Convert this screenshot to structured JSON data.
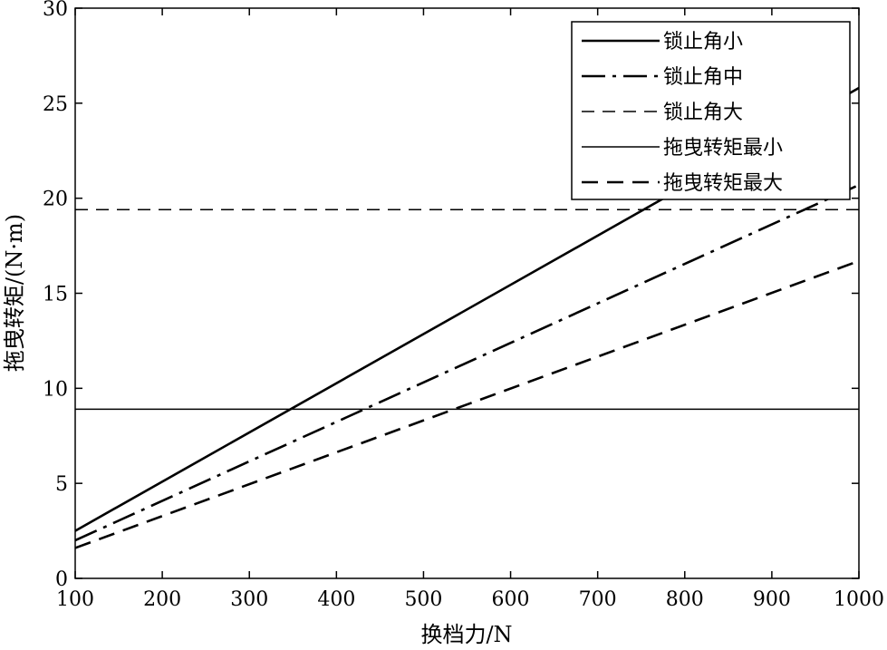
{
  "chart_data": {
    "type": "line",
    "xlabel": "换档力/N",
    "ylabel": "拖曳转矩/(N·m)",
    "xlim": [
      100,
      1000
    ],
    "ylim": [
      0,
      30
    ],
    "xticks": [
      100,
      200,
      300,
      400,
      500,
      600,
      700,
      800,
      900,
      1000
    ],
    "yticks": [
      0,
      5,
      10,
      15,
      20,
      25,
      30
    ],
    "grid": false,
    "legend_position": "top-right",
    "series": [
      {
        "name": "锁止角小",
        "style": "solid-thick",
        "x": [
          100,
          1000
        ],
        "y": [
          2.5,
          25.8
        ]
      },
      {
        "name": "锁止角中",
        "style": "dash-dot",
        "x": [
          100,
          1000
        ],
        "y": [
          2.0,
          20.7
        ]
      },
      {
        "name": "锁止角大",
        "style": "dashed-thin",
        "x": [
          100,
          1000
        ],
        "y": [
          19.4,
          19.4
        ]
      },
      {
        "name": "拖曳转矩最小",
        "style": "solid-thin",
        "x": [
          100,
          1000
        ],
        "y": [
          8.9,
          8.9
        ]
      },
      {
        "name": "拖曳转矩最大",
        "style": "dashed-thick",
        "x": [
          100,
          1000
        ],
        "y": [
          1.6,
          16.7
        ]
      }
    ]
  }
}
